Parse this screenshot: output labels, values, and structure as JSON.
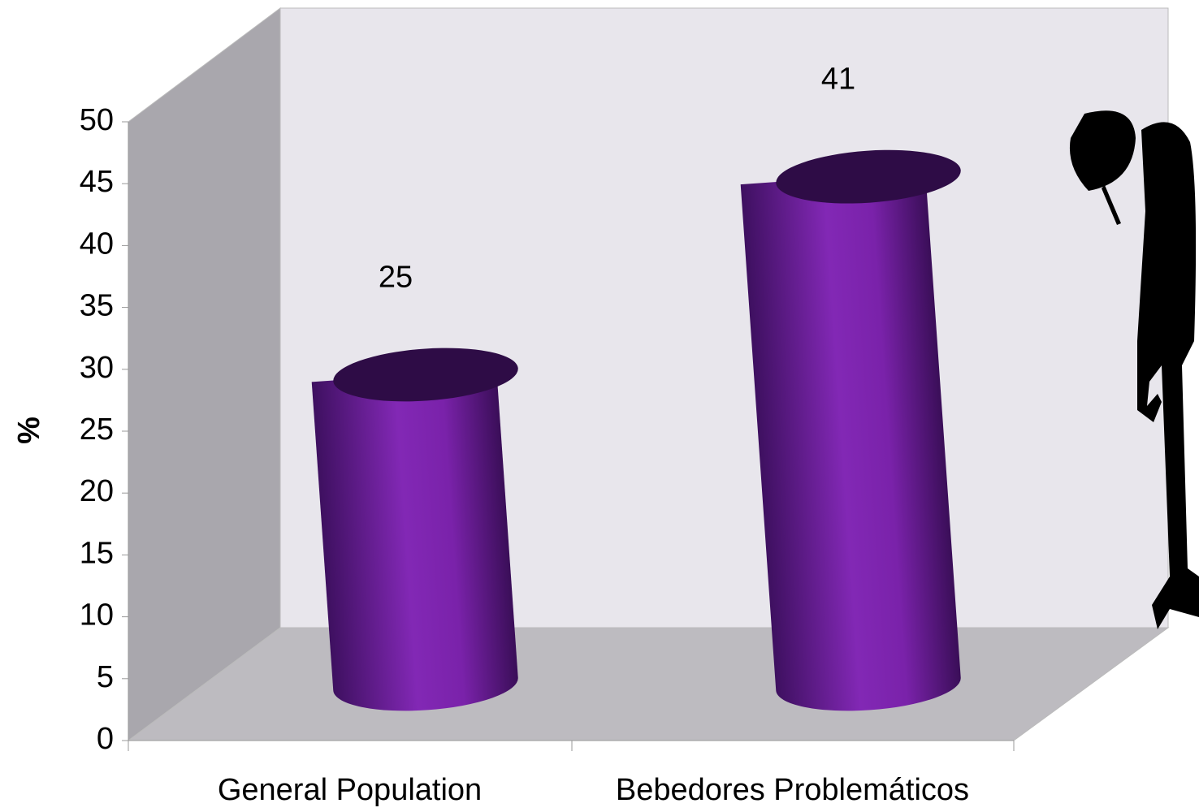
{
  "chart_data": {
    "type": "bar",
    "y_label": "%",
    "categories": [
      "General Population",
      "Bebedores Problemáticos"
    ],
    "values": [
      25,
      41
    ],
    "color": "#7b24ad",
    "ylim": [
      0,
      50
    ],
    "yticks": [
      0,
      5,
      10,
      15,
      20,
      25,
      30,
      35,
      40,
      45,
      50
    ]
  }
}
